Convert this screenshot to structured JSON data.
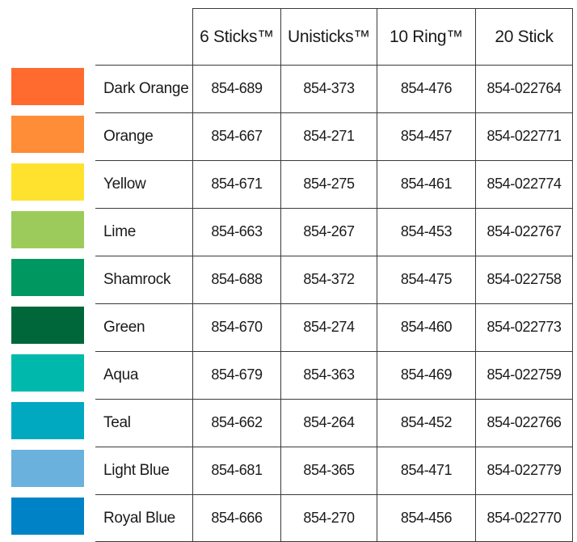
{
  "headers": [
    "6 Sticks™",
    "Unisticks™",
    "10 Ring™",
    "20 Stick"
  ],
  "rows": [
    {
      "name": "Dark Orange",
      "color": "#FF6A2E",
      "values": [
        "854-689",
        "854-373",
        "854-476",
        "854-022764"
      ]
    },
    {
      "name": "Orange",
      "color": "#FF8C36",
      "values": [
        "854-667",
        "854-271",
        "854-457",
        "854-022771"
      ]
    },
    {
      "name": "Yellow",
      "color": "#FFE22E",
      "values": [
        "854-671",
        "854-275",
        "854-461",
        "854-022774"
      ]
    },
    {
      "name": "Lime",
      "color": "#9CCB5B",
      "values": [
        "854-663",
        "854-267",
        "854-453",
        "854-022767"
      ]
    },
    {
      "name": "Shamrock",
      "color": "#009860",
      "values": [
        "854-688",
        "854-372",
        "854-475",
        "854-022758"
      ]
    },
    {
      "name": "Green",
      "color": "#00673A",
      "values": [
        "854-670",
        "854-274",
        "854-460",
        "854-022773"
      ]
    },
    {
      "name": "Aqua",
      "color": "#00B9AC",
      "values": [
        "854-679",
        "854-363",
        "854-469",
        "854-022759"
      ]
    },
    {
      "name": "Teal",
      "color": "#00A9C0",
      "values": [
        "854-662",
        "854-264",
        "854-452",
        "854-022766"
      ]
    },
    {
      "name": "Light Blue",
      "color": "#6BB1DD",
      "values": [
        "854-681",
        "854-365",
        "854-471",
        "854-022779"
      ]
    },
    {
      "name": "Royal Blue",
      "color": "#0083C6",
      "values": [
        "854-666",
        "854-270",
        "854-456",
        "854-022770"
      ]
    }
  ]
}
